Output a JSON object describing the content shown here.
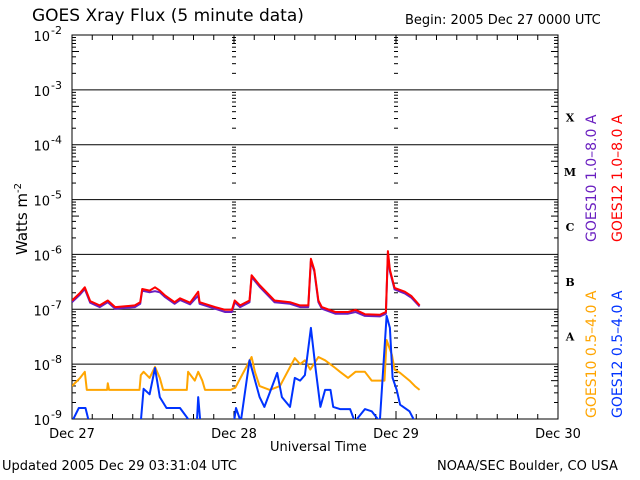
{
  "header": {
    "title": "GOES Xray Flux (5 minute data)",
    "begin": "Begin:  2005 Dec 27 0000 UTC"
  },
  "footer": {
    "updated": "Updated 2005 Dec 29 03:31:04 UTC",
    "credit": "NOAA/SEC Boulder, CO USA"
  },
  "chart_data": {
    "type": "line",
    "title": "GOES Xray Flux (5 minute data)",
    "xlabel": "Universal Time",
    "ylabel": "Watts m-2",
    "ylabel_main": "Watts m",
    "ylabel_exp": "-2",
    "x_unit": "hours since 2005 Dec 27 0000 UTC",
    "xlim": [
      0,
      72
    ],
    "x_ticks": [
      {
        "value": 0,
        "label": "Dec 27"
      },
      {
        "value": 24,
        "label": "Dec 28"
      },
      {
        "value": 48,
        "label": "Dec 29"
      },
      {
        "value": 72,
        "label": "Dec 30"
      }
    ],
    "y_scale": "log",
    "ylim_log10": [
      -9,
      -2
    ],
    "y_ticks": [
      {
        "base": "10",
        "exp": "-2",
        "value": -2
      },
      {
        "base": "10",
        "exp": "-3",
        "value": -3
      },
      {
        "base": "10",
        "exp": "-4",
        "value": -4
      },
      {
        "base": "10",
        "exp": "-5",
        "value": -5
      },
      {
        "base": "10",
        "exp": "-6",
        "value": -6
      },
      {
        "base": "10",
        "exp": "-7",
        "value": -7
      },
      {
        "base": "10",
        "exp": "-8",
        "value": -8
      },
      {
        "base": "10",
        "exp": "-9",
        "value": -9
      }
    ],
    "flare_classes": [
      {
        "label": "X",
        "value": -3.5
      },
      {
        "label": "M",
        "value": -4.5
      },
      {
        "label": "C",
        "value": -5.5
      },
      {
        "label": "B",
        "value": -6.5
      },
      {
        "label": "A",
        "value": -7.5
      }
    ],
    "series": [
      {
        "name": "GOES10 1.0-8.0 A",
        "legend": "GOES10 1.0–8.0 A",
        "color": "#6a1fc0",
        "points": [
          [
            0,
            -6.87
          ],
          [
            1.2,
            -6.73
          ],
          [
            1.9,
            -6.63
          ],
          [
            2.7,
            -6.88
          ],
          [
            4.1,
            -6.96
          ],
          [
            5.3,
            -6.87
          ],
          [
            6.4,
            -6.99
          ],
          [
            9.3,
            -6.96
          ],
          [
            10.1,
            -6.9
          ],
          [
            10.4,
            -6.66
          ],
          [
            11.5,
            -6.69
          ],
          [
            12.3,
            -6.67
          ],
          [
            13,
            -6.69
          ],
          [
            13.8,
            -6.78
          ],
          [
            15.2,
            -6.9
          ],
          [
            16,
            -6.83
          ],
          [
            17.5,
            -6.91
          ],
          [
            18.7,
            -6.75
          ],
          [
            18.9,
            -6.9
          ],
          [
            21.2,
            -6.99
          ],
          [
            22.7,
            -7.05
          ],
          [
            23.7,
            -7.05
          ],
          [
            24.1,
            -6.87
          ],
          [
            24.9,
            -6.96
          ],
          [
            26.3,
            -6.87
          ],
          [
            26.6,
            -6.41
          ],
          [
            27.8,
            -6.59
          ],
          [
            30,
            -6.87
          ],
          [
            32.3,
            -6.9
          ],
          [
            33.8,
            -6.96
          ],
          [
            35,
            -6.96
          ],
          [
            35.4,
            -6.12
          ],
          [
            35.9,
            -6.31
          ],
          [
            36.5,
            -6.87
          ],
          [
            37,
            -6.99
          ],
          [
            39,
            -7.08
          ],
          [
            40.9,
            -7.08
          ],
          [
            42,
            -7.05
          ],
          [
            43.4,
            -7.12
          ],
          [
            45.6,
            -7.13
          ],
          [
            46.5,
            -7.08
          ],
          [
            46.8,
            -5.98
          ],
          [
            47.1,
            -6.31
          ],
          [
            47.8,
            -6.64
          ],
          [
            49.3,
            -6.71
          ],
          [
            50.3,
            -6.79
          ],
          [
            51.5,
            -6.95
          ]
        ]
      },
      {
        "name": "GOES12 1.0-8.0 A",
        "legend": "GOES12 1.0–8.0 A",
        "color": "#ff0000",
        "points": [
          [
            0,
            -6.84
          ],
          [
            1.2,
            -6.7
          ],
          [
            1.9,
            -6.6
          ],
          [
            2.7,
            -6.85
          ],
          [
            4.1,
            -6.93
          ],
          [
            5.3,
            -6.84
          ],
          [
            6.4,
            -6.96
          ],
          [
            9.3,
            -6.93
          ],
          [
            10.1,
            -6.87
          ],
          [
            10.4,
            -6.63
          ],
          [
            11.5,
            -6.66
          ],
          [
            12.3,
            -6.6
          ],
          [
            13,
            -6.66
          ],
          [
            13.8,
            -6.75
          ],
          [
            15.2,
            -6.87
          ],
          [
            16,
            -6.8
          ],
          [
            17.5,
            -6.88
          ],
          [
            18.7,
            -6.68
          ],
          [
            18.9,
            -6.87
          ],
          [
            21.2,
            -6.96
          ],
          [
            22.7,
            -7.01
          ],
          [
            23.7,
            -7.01
          ],
          [
            24.1,
            -6.84
          ],
          [
            24.9,
            -6.93
          ],
          [
            26.3,
            -6.84
          ],
          [
            26.6,
            -6.38
          ],
          [
            27.8,
            -6.56
          ],
          [
            30,
            -6.84
          ],
          [
            32.3,
            -6.87
          ],
          [
            33.8,
            -6.93
          ],
          [
            35,
            -6.93
          ],
          [
            35.4,
            -6.08
          ],
          [
            35.9,
            -6.28
          ],
          [
            36.5,
            -6.84
          ],
          [
            37,
            -6.96
          ],
          [
            39,
            -7.05
          ],
          [
            40.9,
            -7.05
          ],
          [
            42,
            -7.01
          ],
          [
            43.4,
            -7.09
          ],
          [
            45.6,
            -7.1
          ],
          [
            46.5,
            -7.05
          ],
          [
            46.8,
            -5.94
          ],
          [
            47.1,
            -6.28
          ],
          [
            47.8,
            -6.61
          ],
          [
            49.3,
            -6.68
          ],
          [
            50.3,
            -6.76
          ],
          [
            51.5,
            -6.93
          ]
        ]
      },
      {
        "name": "GOES10 0.5-4.0 A",
        "legend": "GOES10 0.5–4.0 A",
        "color": "#ffa500",
        "points": [
          [
            0,
            -8.4
          ],
          [
            1.2,
            -8.25
          ],
          [
            1.9,
            -8.14
          ],
          [
            2.2,
            -8.47
          ],
          [
            5.2,
            -8.47
          ],
          [
            5.3,
            -8.35
          ],
          [
            5.5,
            -8.47
          ],
          [
            10,
            -8.47
          ],
          [
            10.2,
            -8.2
          ],
          [
            10.6,
            -8.14
          ],
          [
            11.5,
            -8.25
          ],
          [
            12.3,
            -8.05
          ],
          [
            13,
            -8.25
          ],
          [
            13.5,
            -8.47
          ],
          [
            17,
            -8.47
          ],
          [
            17.2,
            -8.14
          ],
          [
            18.2,
            -8.3
          ],
          [
            18.7,
            -8.14
          ],
          [
            19.3,
            -8.3
          ],
          [
            19.7,
            -8.47
          ],
          [
            23.5,
            -8.47
          ],
          [
            24.2,
            -8.43
          ],
          [
            26.6,
            -7.87
          ],
          [
            27.1,
            -8.14
          ],
          [
            27.8,
            -8.4
          ],
          [
            29.3,
            -8.47
          ],
          [
            30.8,
            -8.4
          ],
          [
            33,
            -7.89
          ],
          [
            33.8,
            -8.0
          ],
          [
            34.5,
            -7.93
          ],
          [
            35.3,
            -8.1
          ],
          [
            36.5,
            -7.87
          ],
          [
            37.5,
            -7.93
          ],
          [
            39,
            -8.07
          ],
          [
            39.7,
            -8.14
          ],
          [
            40.9,
            -8.25
          ],
          [
            42,
            -8.14
          ],
          [
            43.4,
            -8.14
          ],
          [
            44.4,
            -8.3
          ],
          [
            46.3,
            -8.3
          ],
          [
            46.6,
            -7.56
          ],
          [
            47.4,
            -7.83
          ],
          [
            47.8,
            -8.1
          ],
          [
            48.6,
            -8.16
          ],
          [
            50,
            -8.3
          ],
          [
            50.8,
            -8.4
          ],
          [
            51.5,
            -8.47
          ]
        ]
      },
      {
        "name": "GOES12 0.5-4.0 A",
        "legend": "GOES12 0.5–4.0 A",
        "color": "#0033ff",
        "points": [
          [
            0,
            -9.05
          ],
          [
            1,
            -8.8
          ],
          [
            2,
            -8.8
          ],
          [
            2.5,
            -9.05
          ],
          [
            10.2,
            -9.05
          ],
          [
            10.6,
            -8.45
          ],
          [
            11.5,
            -8.55
          ],
          [
            12.3,
            -8.07
          ],
          [
            13,
            -8.6
          ],
          [
            14,
            -8.8
          ],
          [
            16,
            -8.8
          ],
          [
            17.5,
            -9.05
          ],
          [
            18.5,
            -9.05
          ],
          [
            18.7,
            -8.6
          ],
          [
            19,
            -9.05
          ],
          [
            24,
            -9.05
          ],
          [
            24.3,
            -8.8
          ],
          [
            25,
            -9.05
          ],
          [
            26.3,
            -7.93
          ],
          [
            27.8,
            -8.6
          ],
          [
            28.5,
            -8.78
          ],
          [
            30.4,
            -8.16
          ],
          [
            31.1,
            -8.6
          ],
          [
            32.3,
            -8.78
          ],
          [
            33,
            -8.25
          ],
          [
            33.8,
            -8.3
          ],
          [
            34.5,
            -8.2
          ],
          [
            35.4,
            -7.34
          ],
          [
            36.1,
            -8.1
          ],
          [
            36.8,
            -8.78
          ],
          [
            37.5,
            -8.47
          ],
          [
            38.3,
            -8.47
          ],
          [
            38.7,
            -8.78
          ],
          [
            39.7,
            -8.82
          ],
          [
            41.2,
            -8.82
          ],
          [
            41.9,
            -9.05
          ],
          [
            43.4,
            -8.82
          ],
          [
            44.4,
            -8.86
          ],
          [
            45.6,
            -9.05
          ],
          [
            46.6,
            -7.12
          ],
          [
            47.1,
            -7.34
          ],
          [
            47.5,
            -8.25
          ],
          [
            48.1,
            -8.47
          ],
          [
            48.6,
            -8.74
          ],
          [
            50,
            -8.86
          ],
          [
            50.8,
            -9.05
          ]
        ]
      }
    ]
  }
}
